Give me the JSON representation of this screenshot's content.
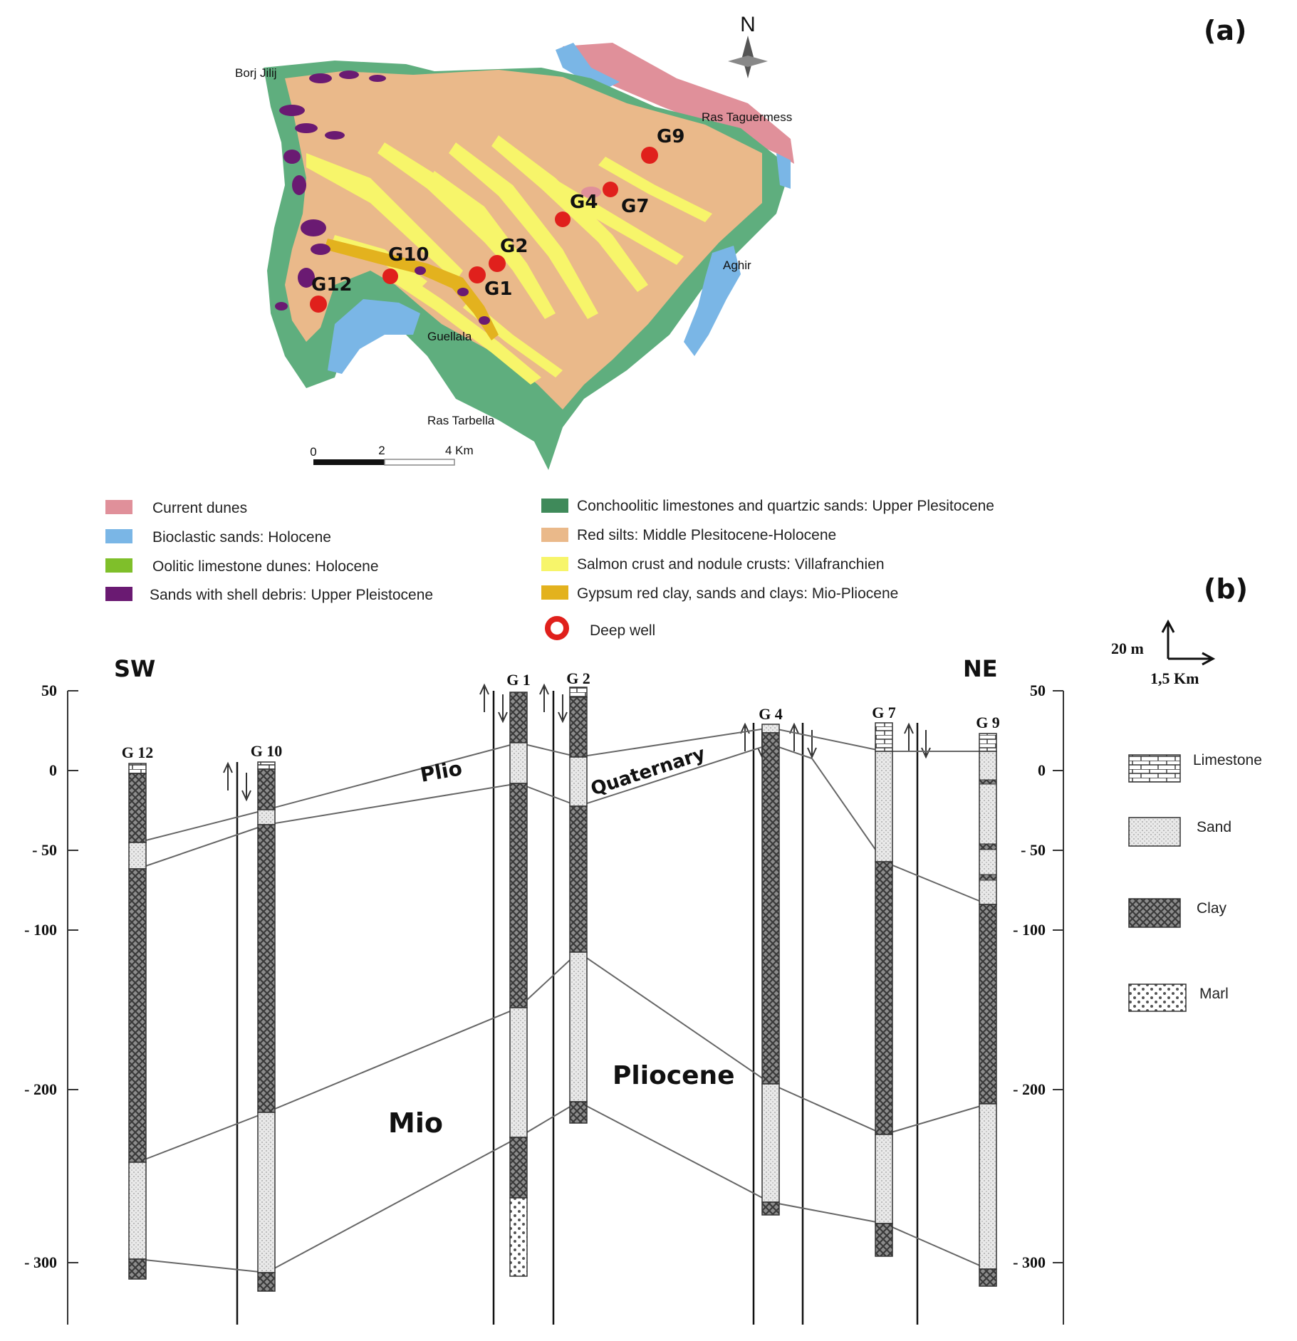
{
  "panel_a": {
    "label": "(a)",
    "north": "N",
    "places": [
      "Borj Jilij",
      "Ras Taguermess",
      "Aghir",
      "Guellala",
      "Ras Tarbella"
    ],
    "wells": [
      "G9",
      "G4",
      "G7",
      "G2",
      "G10",
      "G1",
      "G12"
    ],
    "scale": {
      "ticks": [
        "0",
        "2",
        "4 Km"
      ]
    },
    "legend": [
      {
        "text": "Current dunes",
        "color": "#e0909a"
      },
      {
        "text": "Bioclastic sands: Holocene",
        "color": "#7ab6e6"
      },
      {
        "text": "Oolitic limestone dunes: Holocene",
        "color": "#7fbf2a"
      },
      {
        "text": "Sands with shell debris: Upper Pleistocene",
        "color": "#6a1a72"
      },
      {
        "text": "Conchoolitic limestones and quartzic sands: Upper Plesitocene",
        "color": "#3f8a5a"
      },
      {
        "text": "Red silts: Middle Plesitocene-Holocene",
        "color": "#eab98a"
      },
      {
        "text": "Salmon crust and nodule crusts: Villafranchien",
        "color": "#f7f56a"
      },
      {
        "text": "Gypsum red clay, sands and clays: Mio-Pliocene",
        "color": "#e3b21e"
      }
    ],
    "deep_well": "Deep well",
    "well_color": "#e0201c"
  },
  "panel_b": {
    "label": "(b)",
    "sw": "SW",
    "ne": "NE",
    "ticks": [
      "50",
      "0",
      "- 50",
      "- 100",
      "- 200",
      "- 300"
    ],
    "scale_v": "20 m",
    "scale_h": "1,5 Km",
    "well_labels": [
      "G 12",
      "G 10",
      "G 1",
      "G 2",
      "G 4",
      "G 7",
      "G 9"
    ],
    "units": [
      "Plio",
      "Quaternary",
      "Mio",
      "Pliocene"
    ],
    "legend": [
      "Limestone",
      "Sand",
      "Clay",
      "Marl"
    ]
  }
}
